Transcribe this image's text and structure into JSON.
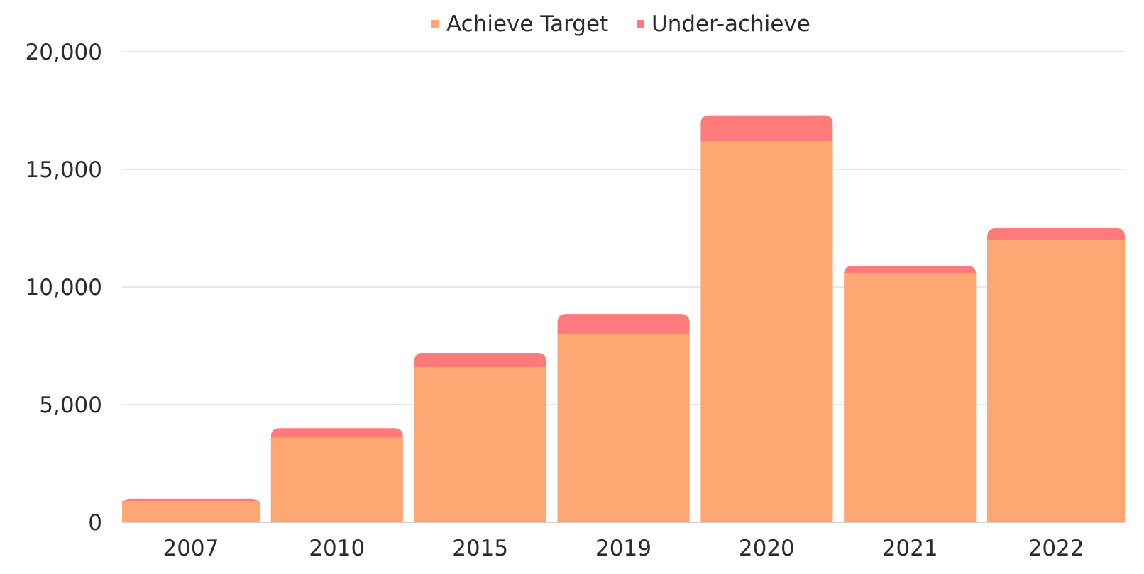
{
  "chart_data": {
    "type": "bar",
    "stacked": true,
    "categories": [
      "2007",
      "2010",
      "2015",
      "2019",
      "2020",
      "2021",
      "2022"
    ],
    "series": [
      {
        "name": "Achieve Target",
        "color": "#FFA772",
        "values": [
          900,
          3600,
          6600,
          8000,
          16200,
          10600,
          12000
        ]
      },
      {
        "name": "Under-achieve",
        "color": "#FF7A7A",
        "values": [
          100,
          400,
          600,
          850,
          1100,
          300,
          500
        ]
      }
    ],
    "title": "",
    "xlabel": "",
    "ylabel": "",
    "ylim": [
      0,
      20000
    ],
    "yticks": [
      {
        "value": 0,
        "label": "0"
      },
      {
        "value": 5000,
        "label": "5,000"
      },
      {
        "value": 10000,
        "label": "10,000"
      },
      {
        "value": 15000,
        "label": "15,000"
      },
      {
        "value": 20000,
        "label": "20,000"
      }
    ],
    "grid": true,
    "legend_position": "top-center"
  }
}
